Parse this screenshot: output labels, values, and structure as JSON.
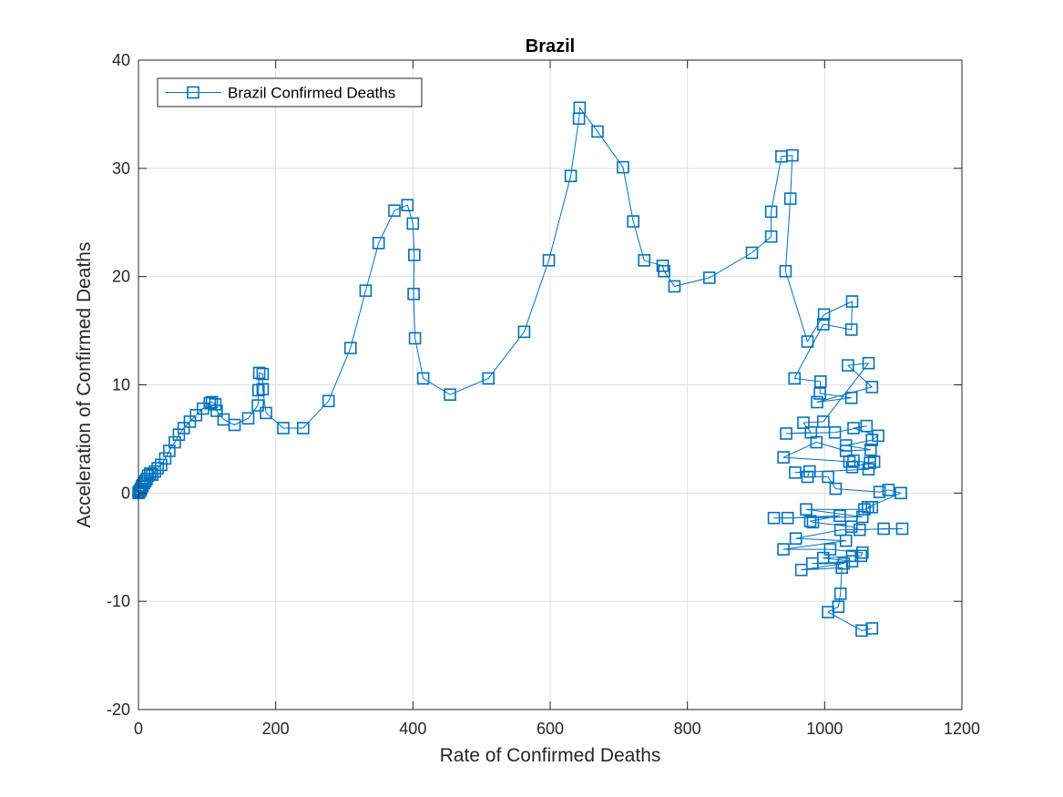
{
  "chart_data": {
    "type": "line",
    "title": "Brazil",
    "xlabel": "Rate of Confirmed Deaths",
    "ylabel": "Acceleration of Confirmed Deaths",
    "xlim": [
      0,
      1200
    ],
    "ylim": [
      -20,
      40
    ],
    "xticks": [
      0,
      200,
      400,
      600,
      800,
      1000,
      1200
    ],
    "yticks": [
      -20,
      -10,
      0,
      10,
      20,
      30,
      40
    ],
    "grid": true,
    "legend_position": "top-left",
    "series": [
      {
        "name": "Brazil Confirmed Deaths",
        "color": "#0072BD",
        "marker": "square",
        "points": [
          [
            0,
            0
          ],
          [
            1,
            0.1
          ],
          [
            2,
            0.2
          ],
          [
            3,
            0.3
          ],
          [
            4,
            0.4
          ],
          [
            5,
            0.6
          ],
          [
            6,
            0.7
          ],
          [
            8,
            0.9
          ],
          [
            10,
            1.1
          ],
          [
            12,
            1.3
          ],
          [
            14,
            1.6
          ],
          [
            17,
            1.8
          ],
          [
            20,
            1.7
          ],
          [
            24,
            2.0
          ],
          [
            28,
            2.3
          ],
          [
            33,
            2.6
          ],
          [
            39,
            3.2
          ],
          [
            45,
            3.9
          ],
          [
            53,
            4.7
          ],
          [
            59,
            5.4
          ],
          [
            66,
            6.0
          ],
          [
            75,
            6.6
          ],
          [
            84,
            7.2
          ],
          [
            94,
            7.8
          ],
          [
            104,
            8.3
          ],
          [
            107,
            8.4
          ],
          [
            112,
            8.2
          ],
          [
            114,
            7.6
          ],
          [
            124,
            6.8
          ],
          [
            140,
            6.3
          ],
          [
            160,
            6.9
          ],
          [
            174,
            8.1
          ],
          [
            175,
            9.5
          ],
          [
            176,
            11.1
          ],
          [
            181,
            11.0
          ],
          [
            181,
            9.6
          ],
          [
            186,
            7.4
          ],
          [
            211,
            6.0
          ],
          [
            240,
            6.0
          ],
          [
            277,
            8.5
          ],
          [
            309,
            13.4
          ],
          [
            331,
            18.7
          ],
          [
            350,
            23.1
          ],
          [
            373,
            26.1
          ],
          [
            392,
            26.6
          ],
          [
            400,
            24.9
          ],
          [
            402,
            22.0
          ],
          [
            401,
            18.4
          ],
          [
            403,
            14.3
          ],
          [
            415,
            10.6
          ],
          [
            454,
            9.1
          ],
          [
            510,
            10.6
          ],
          [
            562,
            14.9
          ],
          [
            598,
            21.5
          ],
          [
            630,
            29.3
          ],
          [
            642,
            34.6
          ],
          [
            643,
            35.6
          ],
          [
            669,
            33.4
          ],
          [
            706,
            30.1
          ],
          [
            721,
            25.1
          ],
          [
            737,
            21.5
          ],
          [
            764,
            21.0
          ],
          [
            766,
            20.5
          ],
          [
            781,
            19.1
          ],
          [
            832,
            19.9
          ],
          [
            894,
            22.2
          ],
          [
            922,
            23.7
          ],
          [
            922,
            26.0
          ],
          [
            937,
            31.1
          ],
          [
            953,
            31.2
          ],
          [
            950,
            27.2
          ],
          [
            943,
            20.5
          ],
          [
            975,
            14.0
          ],
          [
            999,
            16.5
          ],
          [
            1040,
            17.7
          ],
          [
            1039,
            15.1
          ],
          [
            998,
            15.6
          ],
          [
            956,
            10.6
          ],
          [
            994,
            10.3
          ],
          [
            993,
            9.2
          ],
          [
            1039,
            8.8
          ],
          [
            989,
            8.4
          ],
          [
            1069,
            9.8
          ],
          [
            1034,
            11.8
          ],
          [
            1064,
            12.0
          ],
          [
            998,
            6.6
          ],
          [
            969,
            6.5
          ],
          [
            980,
            5.6
          ],
          [
            944,
            5.5
          ],
          [
            1015,
            5.6
          ],
          [
            1061,
            6.2
          ],
          [
            1042,
            6.0
          ],
          [
            1078,
            5.3
          ],
          [
            1069,
            4.9
          ],
          [
            1031,
            4.4
          ],
          [
            1067,
            4.0
          ],
          [
            1031,
            3.9
          ],
          [
            988,
            4.7
          ],
          [
            940,
            3.3
          ],
          [
            1036,
            2.9
          ],
          [
            1042,
            3.0
          ],
          [
            1066,
            2.8
          ],
          [
            1072,
            2.9
          ],
          [
            1040,
            2.4
          ],
          [
            1064,
            2.2
          ],
          [
            957,
            1.9
          ],
          [
            978,
            2.0
          ],
          [
            975,
            1.5
          ],
          [
            1005,
            1.5
          ],
          [
            1016,
            0.4
          ],
          [
            1080,
            0.1
          ],
          [
            1093,
            0.3
          ],
          [
            1111,
            0.0
          ],
          [
            1063,
            -1.3
          ],
          [
            1069,
            -1.3
          ],
          [
            1058,
            -1.5
          ],
          [
            973,
            -1.5
          ],
          [
            1055,
            -2.2
          ],
          [
            926,
            -2.3
          ],
          [
            946,
            -2.3
          ],
          [
            1022,
            -2.1
          ],
          [
            979,
            -2.6
          ],
          [
            983,
            -2.7
          ],
          [
            1039,
            -3.1
          ],
          [
            1051,
            -3.4
          ],
          [
            1086,
            -3.3
          ],
          [
            1113,
            -3.3
          ],
          [
            1023,
            -3.4
          ],
          [
            958,
            -4.2
          ],
          [
            1031,
            -4.4
          ],
          [
            940,
            -5.2
          ],
          [
            1008,
            -5.2
          ],
          [
            1055,
            -5.5
          ],
          [
            1053,
            -5.8
          ],
          [
            1040,
            -5.8
          ],
          [
            998,
            -6.0
          ],
          [
            1040,
            -6.3
          ],
          [
            982,
            -6.5
          ],
          [
            1028,
            -6.5
          ],
          [
            966,
            -7.1
          ],
          [
            1025,
            -6.9
          ],
          [
            1023,
            -9.3
          ],
          [
            1020,
            -10.5
          ],
          [
            1005,
            -11.0
          ],
          [
            1054,
            -12.7
          ],
          [
            1069,
            -12.5
          ]
        ]
      }
    ]
  }
}
